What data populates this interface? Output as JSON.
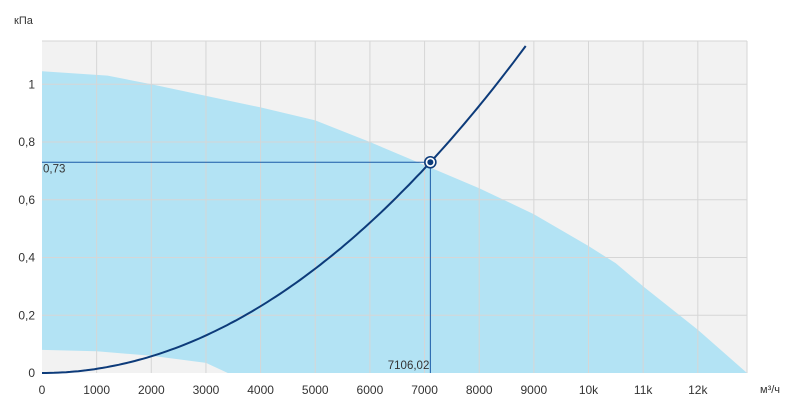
{
  "chart_data": {
    "type": "line",
    "y_unit": "кПа",
    "x_unit": "м³/ч",
    "xlim": [
      0,
      12900
    ],
    "ylim": [
      0,
      1.15
    ],
    "grid": true,
    "x_ticks": [
      {
        "value": 0,
        "label": "0"
      },
      {
        "value": 1000,
        "label": "1000"
      },
      {
        "value": 2000,
        "label": "2000"
      },
      {
        "value": 3000,
        "label": "3000"
      },
      {
        "value": 4000,
        "label": "4000"
      },
      {
        "value": 5000,
        "label": "5000"
      },
      {
        "value": 6000,
        "label": "6000"
      },
      {
        "value": 7000,
        "label": "7000"
      },
      {
        "value": 8000,
        "label": "8000"
      },
      {
        "value": 9000,
        "label": "9000"
      },
      {
        "value": 10000,
        "label": "10k"
      },
      {
        "value": 11000,
        "label": "11k"
      },
      {
        "value": 12000,
        "label": "12k"
      }
    ],
    "y_ticks": [
      {
        "value": 0,
        "label": "0"
      },
      {
        "value": 0.2,
        "label": "0,2"
      },
      {
        "value": 0.4,
        "label": "0,4"
      },
      {
        "value": 0.6,
        "label": "0,6"
      },
      {
        "value": 0.8,
        "label": "0,8"
      },
      {
        "value": 1.0,
        "label": "1"
      }
    ],
    "operating_area": {
      "color": "#b3e3f4",
      "upper": [
        [
          0,
          1.045
        ],
        [
          1200,
          1.03
        ],
        [
          2000,
          1.0
        ],
        [
          3000,
          0.96
        ],
        [
          4000,
          0.92
        ],
        [
          5000,
          0.875
        ],
        [
          6000,
          0.8
        ],
        [
          7000,
          0.72
        ],
        [
          8000,
          0.64
        ],
        [
          9000,
          0.55
        ],
        [
          10000,
          0.44
        ],
        [
          10500,
          0.38
        ],
        [
          11000,
          0.3
        ],
        [
          12000,
          0.15
        ],
        [
          12900,
          0.0
        ]
      ],
      "lower": [
        [
          0,
          0.08
        ],
        [
          1000,
          0.075
        ],
        [
          2000,
          0.06
        ],
        [
          3000,
          0.035
        ],
        [
          3400,
          0.0
        ]
      ]
    },
    "system_curve": {
      "color": "#0d3b7a",
      "k": 0.01446,
      "x_range": [
        0,
        8850
      ]
    },
    "operating_point": {
      "x": 7106.02,
      "y": 0.73,
      "x_label": "7106,02",
      "y_label": "0,73",
      "color": "#1a5aa6"
    }
  }
}
